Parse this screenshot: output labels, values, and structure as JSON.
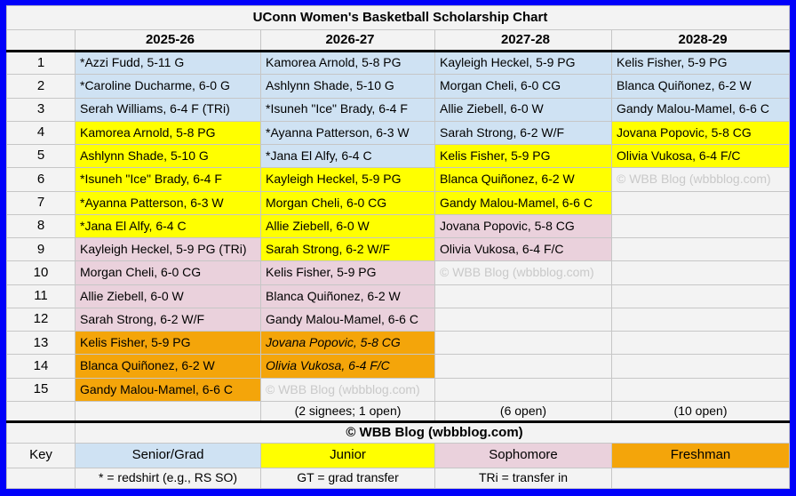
{
  "colors": {
    "frame_blue": "#0101fa",
    "senior_blue": "#cfe2f3",
    "junior_yellow": "#ffff00",
    "sophomore_pink": "#ead1dc",
    "freshman_orange": "#f4a50a",
    "cell_gray": "#f3f3f3",
    "watermark_gray": "#c9c9c9"
  },
  "chart_data": {
    "type": "table",
    "title": "UConn Women's Basketball Scholarship Chart",
    "columns": [
      "2025-26",
      "2026-27",
      "2027-28",
      "2028-29"
    ],
    "class_legend": {
      "senior": "Senior/Grad",
      "junior": "Junior",
      "soph": "Sophomore",
      "fresh": "Freshman"
    },
    "rows": [
      {
        "num": "1",
        "cells": [
          {
            "text": "*Azzi Fudd, 5-11 G",
            "class": "senior"
          },
          {
            "text": "Kamorea Arnold, 5-8 PG",
            "class": "senior"
          },
          {
            "text": "Kayleigh Heckel, 5-9 PG",
            "class": "senior"
          },
          {
            "text": "Kelis Fisher, 5-9 PG",
            "class": "senior"
          }
        ]
      },
      {
        "num": "2",
        "cells": [
          {
            "text": "*Caroline Ducharme, 6-0 G",
            "class": "senior"
          },
          {
            "text": "Ashlynn Shade, 5-10 G",
            "class": "senior"
          },
          {
            "text": "Morgan Cheli, 6-0 CG",
            "class": "senior"
          },
          {
            "text": "Blanca Quiñonez, 6-2 W",
            "class": "senior"
          }
        ]
      },
      {
        "num": "3",
        "cells": [
          {
            "text": "Serah Williams, 6-4 F (TRi)",
            "class": "senior"
          },
          {
            "text": "*Isuneh \"Ice\" Brady, 6-4 F",
            "class": "senior"
          },
          {
            "text": "Allie Ziebell, 6-0 W",
            "class": "senior"
          },
          {
            "text": "Gandy Malou-Mamel, 6-6 C",
            "class": "senior"
          }
        ]
      },
      {
        "num": "4",
        "cells": [
          {
            "text": "Kamorea Arnold, 5-8 PG",
            "class": "junior"
          },
          {
            "text": "*Ayanna Patterson, 6-3 W",
            "class": "senior"
          },
          {
            "text": "Sarah Strong, 6-2 W/F",
            "class": "senior"
          },
          {
            "text": "Jovana Popovic, 5-8 CG",
            "class": "junior"
          }
        ]
      },
      {
        "num": "5",
        "cells": [
          {
            "text": "Ashlynn Shade, 5-10 G",
            "class": "junior"
          },
          {
            "text": "*Jana El Alfy, 6-4 C",
            "class": "senior"
          },
          {
            "text": "Kelis Fisher, 5-9 PG",
            "class": "junior"
          },
          {
            "text": "Olivia Vukosa, 6-4 F/C",
            "class": "junior"
          }
        ]
      },
      {
        "num": "6",
        "cells": [
          {
            "text": "*Isuneh \"Ice\" Brady, 6-4 F",
            "class": "junior"
          },
          {
            "text": "Kayleigh Heckel, 5-9 PG",
            "class": "junior"
          },
          {
            "text": "Blanca Quiñonez, 6-2 W",
            "class": "junior"
          },
          {
            "text": "© WBB Blog (wbbblog.com)",
            "class": "wm"
          }
        ]
      },
      {
        "num": "7",
        "cells": [
          {
            "text": "*Ayanna Patterson, 6-3 W",
            "class": "junior"
          },
          {
            "text": "Morgan Cheli, 6-0 CG",
            "class": "junior"
          },
          {
            "text": "Gandy Malou-Mamel, 6-6 C",
            "class": "junior"
          },
          {
            "text": "",
            "class": "empty"
          }
        ]
      },
      {
        "num": "8",
        "cells": [
          {
            "text": "*Jana El Alfy, 6-4 C",
            "class": "junior"
          },
          {
            "text": "Allie Ziebell, 6-0 W",
            "class": "junior"
          },
          {
            "text": "Jovana Popovic, 5-8 CG",
            "class": "soph"
          },
          {
            "text": "",
            "class": "empty"
          }
        ]
      },
      {
        "num": "9",
        "cells": [
          {
            "text": "Kayleigh Heckel, 5-9 PG (TRi)",
            "class": "soph"
          },
          {
            "text": "Sarah Strong, 6-2 W/F",
            "class": "junior"
          },
          {
            "text": "Olivia Vukosa, 6-4 F/C",
            "class": "soph"
          },
          {
            "text": "",
            "class": "empty"
          }
        ]
      },
      {
        "num": "10",
        "cells": [
          {
            "text": "Morgan Cheli, 6-0 CG",
            "class": "soph"
          },
          {
            "text": "Kelis Fisher, 5-9 PG",
            "class": "soph"
          },
          {
            "text": "© WBB Blog (wbbblog.com)",
            "class": "wm"
          },
          {
            "text": "",
            "class": "empty"
          }
        ]
      },
      {
        "num": "11",
        "cells": [
          {
            "text": "Allie Ziebell, 6-0 W",
            "class": "soph"
          },
          {
            "text": "Blanca Quiñonez, 6-2 W",
            "class": "soph"
          },
          {
            "text": "",
            "class": "empty"
          },
          {
            "text": "",
            "class": "empty"
          }
        ]
      },
      {
        "num": "12",
        "cells": [
          {
            "text": "Sarah Strong, 6-2 W/F",
            "class": "soph"
          },
          {
            "text": "Gandy Malou-Mamel, 6-6 C",
            "class": "soph"
          },
          {
            "text": "",
            "class": "empty"
          },
          {
            "text": "",
            "class": "empty"
          }
        ]
      },
      {
        "num": "13",
        "cells": [
          {
            "text": "Kelis Fisher, 5-9 PG",
            "class": "fresh"
          },
          {
            "text": "Jovana Popovic, 5-8 CG",
            "class": "fresh",
            "italic": true
          },
          {
            "text": "",
            "class": "empty"
          },
          {
            "text": "",
            "class": "empty"
          }
        ]
      },
      {
        "num": "14",
        "cells": [
          {
            "text": "Blanca Quiñonez, 6-2 W",
            "class": "fresh"
          },
          {
            "text": "Olivia Vukosa, 6-4 F/C",
            "class": "fresh",
            "italic": true
          },
          {
            "text": "",
            "class": "empty"
          },
          {
            "text": "",
            "class": "empty"
          }
        ]
      },
      {
        "num": "15",
        "cells": [
          {
            "text": "Gandy Malou-Mamel, 6-6 C",
            "class": "fresh"
          },
          {
            "text": "© WBB Blog (wbbblog.com)",
            "class": "wm"
          },
          {
            "text": "",
            "class": "empty"
          },
          {
            "text": "",
            "class": "empty"
          }
        ]
      }
    ],
    "summary": [
      "",
      "(2 signees; 1 open)",
      "(6 open)",
      "(10 open)"
    ],
    "copyright": "© WBB Blog (wbbblog.com)",
    "key": {
      "label": "Key",
      "items": [
        {
          "text": "Senior/Grad",
          "class": "senior"
        },
        {
          "text": "Junior",
          "class": "junior"
        },
        {
          "text": "Sophomore",
          "class": "soph"
        },
        {
          "text": "Freshman",
          "class": "fresh"
        }
      ]
    },
    "footnotes": [
      "* = redshirt (e.g., RS SO)",
      "GT = grad transfer",
      "TRi = transfer in",
      ""
    ]
  }
}
